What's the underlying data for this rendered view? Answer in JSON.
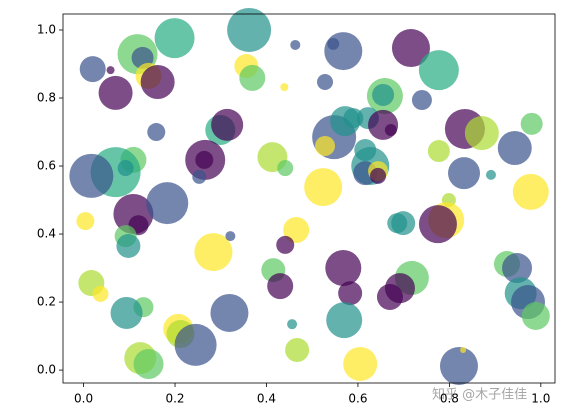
{
  "chart_data": {
    "type": "scatter",
    "x": [
      0.02,
      0.059,
      0.07,
      0.118,
      0.129,
      0.142,
      0.162,
      0.199,
      0.362,
      0.356,
      0.369,
      0.463,
      0.568,
      0.546,
      0.716,
      0.777,
      0.74,
      0.528,
      0.659,
      0.655,
      0.439,
      0.159,
      0.299,
      0.314,
      0.266,
      0.264,
      0.253,
      0.109,
      0.07,
      0.092,
      0.017,
      0.109,
      0.12,
      0.183,
      0.004,
      0.092,
      0.098,
      0.284,
      0.321,
      0.413,
      0.441,
      0.465,
      0.441,
      0.548,
      0.572,
      0.622,
      0.655,
      0.672,
      0.59,
      0.528,
      0.616,
      0.627,
      0.616,
      0.644,
      0.644,
      0.524,
      0.777,
      0.834,
      0.871,
      0.98,
      0.943,
      0.832,
      0.891,
      0.978,
      0.799,
      0.793,
      0.775,
      0.699,
      0.686,
      0.415,
      0.43,
      0.568,
      0.583,
      0.718,
      0.692,
      0.67,
      0.926,
      0.948,
      0.956,
      0.972,
      0.989,
      0.017,
      0.037,
      0.131,
      0.094,
      0.207,
      0.212,
      0.319,
      0.245,
      0.124,
      0.142,
      0.456,
      0.467,
      0.57,
      0.605,
      0.821,
      0.83
    ],
    "values": [
      0.885,
      0.882,
      0.815,
      0.929,
      0.918,
      0.865,
      0.847,
      0.976,
      1.0,
      0.894,
      0.859,
      0.956,
      0.938,
      0.959,
      0.947,
      0.882,
      0.794,
      0.847,
      0.806,
      0.809,
      0.832,
      0.7,
      0.706,
      0.721,
      0.618,
      0.618,
      0.568,
      0.618,
      0.582,
      0.594,
      0.571,
      0.459,
      0.426,
      0.491,
      0.438,
      0.394,
      0.365,
      0.347,
      0.394,
      0.626,
      0.594,
      0.412,
      0.368,
      0.685,
      0.732,
      0.741,
      0.721,
      0.706,
      0.741,
      0.659,
      0.647,
      0.6,
      0.579,
      0.585,
      0.571,
      0.538,
      0.644,
      0.709,
      0.697,
      0.724,
      0.653,
      0.579,
      0.574,
      0.524,
      0.5,
      0.441,
      0.429,
      0.432,
      0.432,
      0.294,
      0.247,
      0.3,
      0.226,
      0.271,
      0.241,
      0.215,
      0.312,
      0.3,
      0.226,
      0.2,
      0.159,
      0.256,
      0.224,
      0.185,
      0.168,
      0.121,
      0.106,
      0.168,
      0.074,
      0.035,
      0.018,
      0.135,
      0.059,
      0.147,
      0.018,
      0.012,
      0.059
    ],
    "sizes": [
      13,
      4,
      17,
      20,
      11,
      13,
      17,
      20,
      22,
      12,
      13,
      5,
      19,
      6,
      19,
      20,
      10,
      8,
      18,
      11,
      4,
      9,
      15,
      16,
      20,
      9,
      7,
      13,
      25,
      8,
      22,
      20,
      10,
      21,
      9,
      11,
      12,
      19,
      5,
      15,
      8,
      13,
      9,
      22,
      15,
      11,
      15,
      6,
      10,
      10,
      11,
      19,
      12,
      10,
      8,
      19,
      11,
      20,
      17,
      11,
      17,
      16,
      5,
      18,
      7,
      18,
      19,
      12,
      10,
      12,
      13,
      18,
      12,
      17,
      15,
      13,
      13,
      15,
      16,
      17,
      14,
      13,
      8,
      10,
      16,
      15,
      14,
      19,
      21,
      16,
      15,
      5,
      12,
      18,
      17,
      19,
      3
    ],
    "colors": [
      "#3b528b",
      "#440154",
      "#440154",
      "#5ec962",
      "#3b528b",
      "#fde725",
      "#440154",
      "#27ad81",
      "#21918c",
      "#fde725",
      "#5ec962",
      "#3b528b",
      "#3b528b",
      "#3b528b",
      "#440154",
      "#27ad81",
      "#3b528b",
      "#3b528b",
      "#5ec962",
      "#21918c",
      "#fde725",
      "#3b528b",
      "#27ad81",
      "#440154",
      "#440154",
      "#440154",
      "#3b528b",
      "#5ec962",
      "#27ad81",
      "#21918c",
      "#3b528b",
      "#440154",
      "#440154",
      "#3b528b",
      "#fde725",
      "#5ec962",
      "#21918c",
      "#fde725",
      "#3b528b",
      "#addc30",
      "#5ec962",
      "#fde725",
      "#440154",
      "#3b528b",
      "#21918c",
      "#21918c",
      "#440154",
      "#440154",
      "#21918c",
      "#fde725",
      "#21918c",
      "#21918c",
      "#3b528b",
      "#fde725",
      "#440154",
      "#fde725",
      "#addc30",
      "#440154",
      "#addc30",
      "#5ec962",
      "#3b528b",
      "#3b528b",
      "#21918c",
      "#fde725",
      "#addc30",
      "#fde725",
      "#440154",
      "#21918c",
      "#21918c",
      "#5ec962",
      "#440154",
      "#440154",
      "#440154",
      "#5ec962",
      "#440154",
      "#440154",
      "#5ec962",
      "#3b528b",
      "#21918c",
      "#3b528b",
      "#5ec962",
      "#addc30",
      "#fde725",
      "#5ec962",
      "#21918c",
      "#fde725",
      "#addc30",
      "#3b528b",
      "#3b528b",
      "#addc30",
      "#5ec962",
      "#21918c",
      "#addc30",
      "#21918c",
      "#fde725",
      "#3b528b",
      "#fde725"
    ],
    "xlim": [
      -0.045,
      1.031
    ],
    "ylim": [
      -0.038,
      1.047
    ],
    "xticks": [
      {
        "value": 0,
        "label": "0.0"
      },
      0.2,
      0.4,
      0.6,
      0.8,
      {
        "value": 1,
        "label": "1.0"
      }
    ],
    "yticks": [
      {
        "value": 0,
        "label": "0.0"
      },
      0.2,
      0.4,
      0.6,
      0.8,
      {
        "value": 1,
        "label": "1.0"
      }
    ],
    "watermark": "知乎 @木子佳佳"
  }
}
